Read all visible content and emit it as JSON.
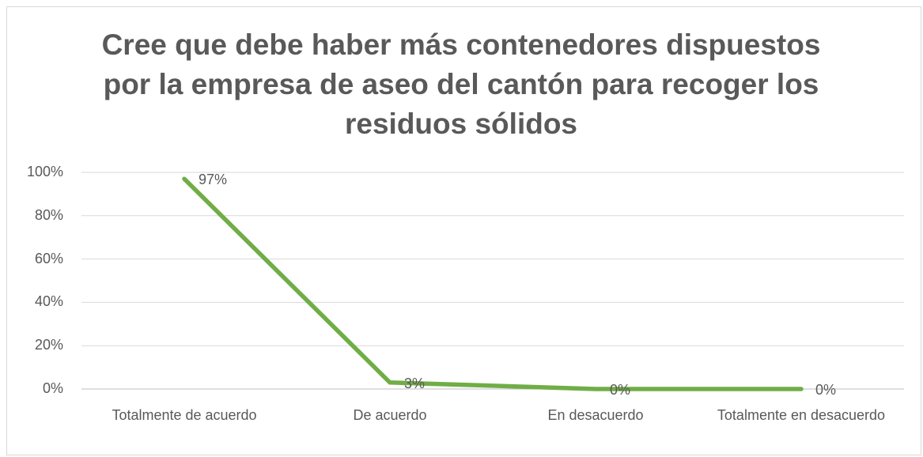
{
  "chart_data": {
    "type": "line",
    "title": "Cree que debe haber más contenedores dispuestos por la empresa de aseo del cantón para recoger los residuos sólidos",
    "categories": [
      "Totalmente de acuerdo",
      "De acuerdo",
      "En desacuerdo",
      "Totalmente en desacuerdo"
    ],
    "values": [
      97,
      3,
      0,
      0
    ],
    "value_labels": [
      "97%",
      "3%",
      "0%",
      "0%"
    ],
    "color": "#70ad47",
    "ylim": [
      0,
      100
    ],
    "yticks": [
      {
        "value": 0,
        "label": "0%"
      },
      {
        "value": 20,
        "label": "20%"
      },
      {
        "value": 40,
        "label": "40%"
      },
      {
        "value": 60,
        "label": "60%"
      },
      {
        "value": 80,
        "label": "80%"
      },
      {
        "value": 100,
        "label": "100%"
      }
    ],
    "grid": true
  }
}
